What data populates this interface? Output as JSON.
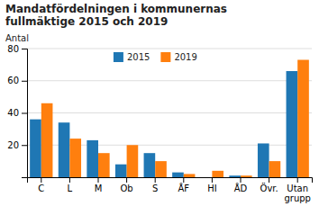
{
  "chart_data": {
    "type": "bar",
    "title": "Mandatfördelningen i kommunernas\nfullmäktige 2015 och 2019",
    "ylabel": "Antal",
    "categories": [
      "C",
      "L",
      "M",
      "Ob",
      "S",
      "ÅF",
      "HI",
      "ÅD",
      "Övr.",
      "Utan\ngrupp"
    ],
    "series": [
      {
        "name": "2015",
        "values": [
          36,
          34,
          23,
          8,
          15,
          3,
          0,
          1,
          21,
          66
        ]
      },
      {
        "name": "2019",
        "values": [
          46,
          24,
          15,
          20,
          10,
          2,
          4,
          1,
          10,
          73
        ]
      }
    ],
    "ylim": [
      0,
      80
    ],
    "yticks": [
      20,
      40,
      60,
      80
    ],
    "grid": true,
    "legend": "top"
  }
}
